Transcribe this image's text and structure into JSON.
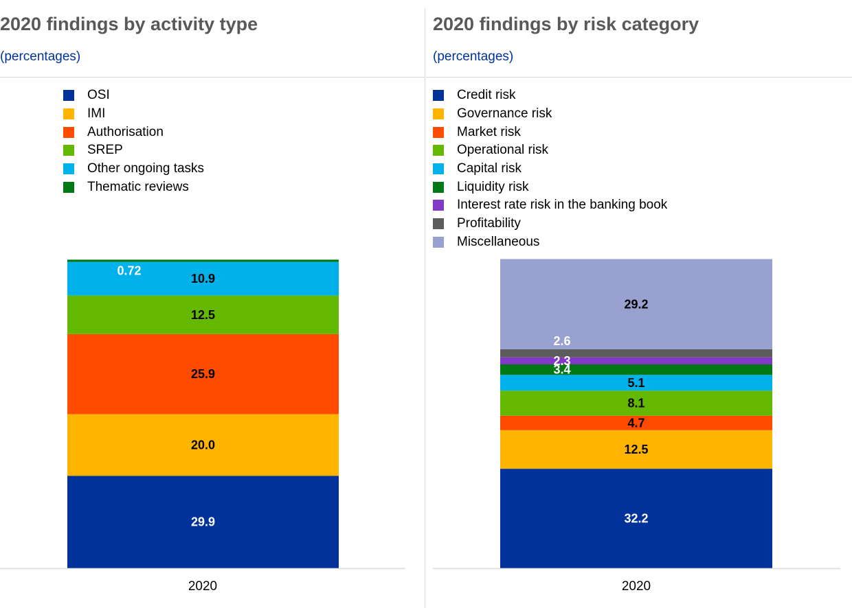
{
  "charts": [
    {
      "title": "2020 findings by activity type",
      "subtitle": "(percentages)",
      "chart_data": {
        "type": "bar",
        "stacked": true,
        "categories": [
          "2020"
        ],
        "ylim": [
          0,
          100
        ],
        "grid": false,
        "legend_position": "top",
        "series": [
          {
            "name": "OSI",
            "values": [
              29.9
            ],
            "label": "29.9",
            "color": "#003299",
            "label_color": "#ffffff"
          },
          {
            "name": "IMI",
            "values": [
              20.0
            ],
            "label": "20.0",
            "color": "#ffb400",
            "label_color": "#000000"
          },
          {
            "name": "Authorisation",
            "values": [
              25.9
            ],
            "label": "25.9",
            "color": "#ff4b00",
            "label_color": "#000000"
          },
          {
            "name": "SREP",
            "values": [
              12.5
            ],
            "label": "12.5",
            "color": "#65b800",
            "label_color": "#000000"
          },
          {
            "name": "Other ongoing tasks",
            "values": [
              10.9
            ],
            "label": "10.9",
            "color": "#00b1ea",
            "label_color": "#000000"
          },
          {
            "name": "Thematic reviews",
            "values": [
              0.72
            ],
            "label": "0.72",
            "color": "#007816",
            "label_color": "#ffffff",
            "label_placement": "left"
          }
        ]
      }
    },
    {
      "title": "2020 findings by risk category",
      "subtitle": "(percentages)",
      "chart_data": {
        "type": "bar",
        "stacked": true,
        "categories": [
          "2020"
        ],
        "ylim": [
          0,
          100
        ],
        "grid": false,
        "legend_position": "top",
        "series": [
          {
            "name": "Credit risk",
            "values": [
              32.2
            ],
            "label": "32.2",
            "color": "#003299",
            "label_color": "#ffffff"
          },
          {
            "name": "Governance risk",
            "values": [
              12.5
            ],
            "label": "12.5",
            "color": "#ffb400",
            "label_color": "#000000"
          },
          {
            "name": "Market risk",
            "values": [
              4.7
            ],
            "label": "4.7",
            "color": "#ff4b00",
            "label_color": "#000000"
          },
          {
            "name": "Operational risk",
            "values": [
              8.1
            ],
            "label": "8.1",
            "color": "#65b800",
            "label_color": "#000000"
          },
          {
            "name": "Capital risk",
            "values": [
              5.1
            ],
            "label": "5.1",
            "color": "#00b1ea",
            "label_color": "#000000"
          },
          {
            "name": "Liquidity risk",
            "values": [
              3.4
            ],
            "label": "3.4",
            "color": "#007816",
            "label_color": "#ffffff",
            "label_placement": "left"
          },
          {
            "name": "Interest rate risk in the banking book",
            "values": [
              2.3
            ],
            "label": "2.3",
            "color": "#8139c6",
            "label_color": "#ffffff",
            "label_placement": "left"
          },
          {
            "name": "Profitability",
            "values": [
              2.6
            ],
            "label": "2.6",
            "color": "#5c5c5c",
            "label_color": "#ffffff",
            "label_placement": "left_above"
          },
          {
            "name": "Miscellaneous",
            "values": [
              29.2
            ],
            "label": "29.2",
            "color": "#98a1d0",
            "label_color": "#000000"
          }
        ]
      }
    }
  ]
}
